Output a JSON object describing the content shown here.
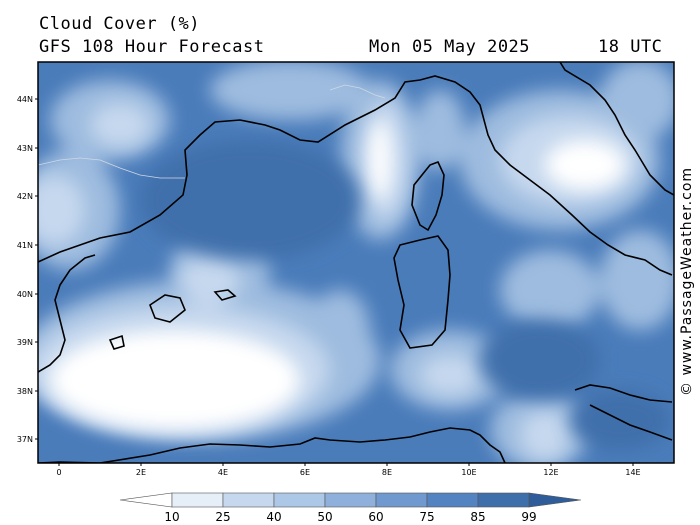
{
  "header": {
    "title": "Cloud Cover (%)",
    "model": "GFS 108 Hour Forecast",
    "date": "Mon 05 May 2025",
    "time": "18 UTC"
  },
  "credit": "© www.PassageWeather.com",
  "map": {
    "lat_labels": [
      "44N",
      "43N",
      "42N",
      "41N",
      "40N",
      "39N",
      "38N",
      "37N"
    ],
    "lon_labels": [
      "0",
      "2E",
      "4E",
      "6E",
      "8E",
      "10E",
      "12E",
      "14E"
    ],
    "colors": {
      "sea_base": "#4a7cba",
      "level_30": "#c6d8ee",
      "level_50": "#9ebcdf",
      "level_70": "#6f99cf",
      "clear": "#ffffff",
      "deep": "#3f6fab",
      "coast": "#000000"
    }
  },
  "legend": {
    "labels": [
      "10",
      "25",
      "40",
      "50",
      "60",
      "75",
      "85",
      "99"
    ],
    "colors": [
      "#ffffff",
      "#e6eef8",
      "#c6d8ee",
      "#adc7e6",
      "#8eb0da",
      "#6f99cf",
      "#5483c2",
      "#3f6fab",
      "#2f5d99"
    ]
  }
}
